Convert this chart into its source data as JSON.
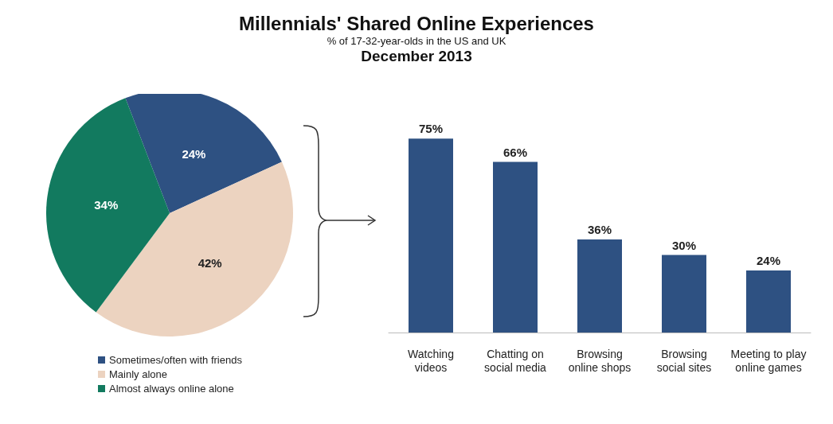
{
  "chart_data": [
    {
      "type": "pie",
      "title": "Millennials' Shared Online Experiences",
      "subtitle": "% of 17-32-year-olds in the US and UK",
      "annotations": [
        "December 2013"
      ],
      "categories": [
        "Sometimes/often with friends",
        "Mainly alone",
        "Almost always online alone"
      ],
      "values": [
        24,
        42,
        34
      ],
      "colors": [
        "#2e5182",
        "#ecd3c0",
        "#127a5f"
      ],
      "value_labels": [
        "24%",
        "42%",
        "34%"
      ],
      "legend": "bottom left"
    },
    {
      "type": "bar",
      "categories": [
        "Watching\nvideos",
        "Chatting on\nsocial media",
        "Browsing\nonline shops",
        "Browsing\nsocial sites",
        "Meeting to play\nonline games"
      ],
      "values": [
        75,
        66,
        36,
        30,
        24
      ],
      "color": "#2e5182",
      "value_labels": [
        "75%",
        "66%",
        "36%",
        "30%",
        "24%"
      ]
    }
  ]
}
